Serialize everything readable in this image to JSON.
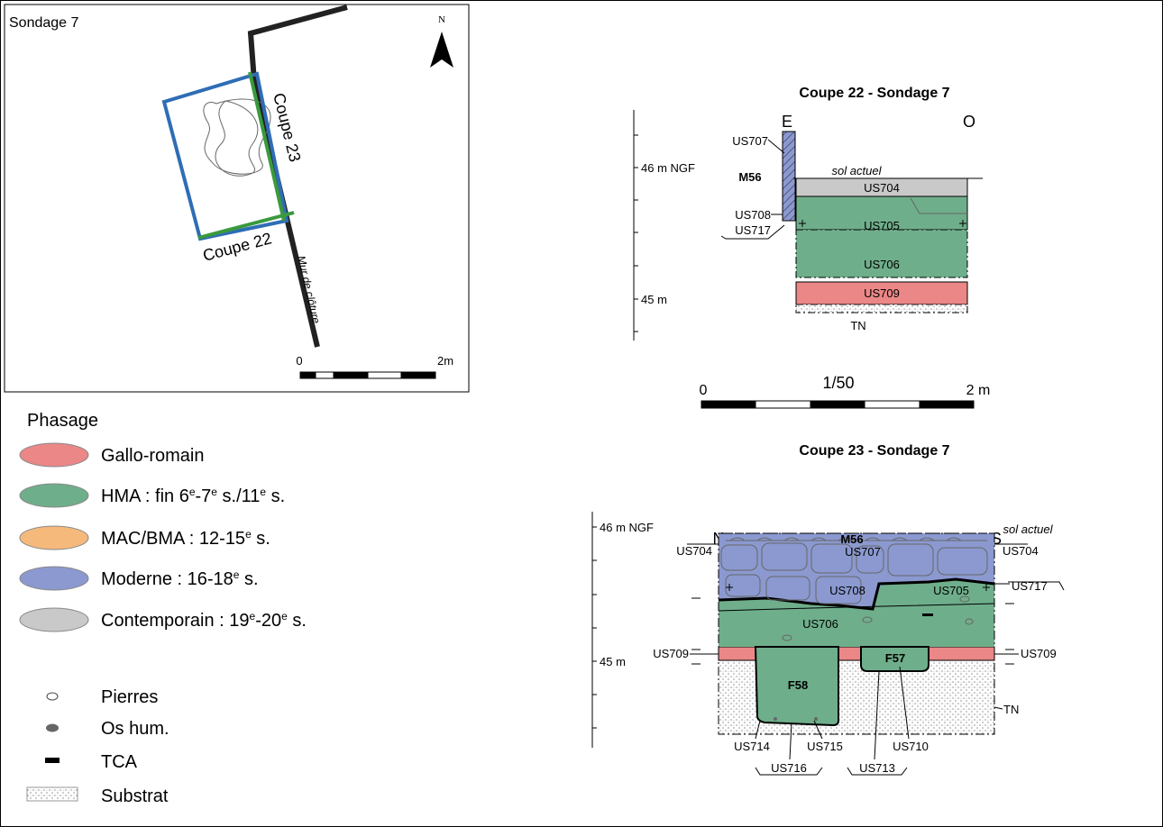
{
  "plan": {
    "title": "Sondage 7",
    "north": "N",
    "coupe_23": "Coupe 23",
    "coupe_22": "Coupe 22",
    "wall": "Mur de clôture",
    "scale_start": "0",
    "scale_end": "2m"
  },
  "legend": {
    "title": "Phasage",
    "phases": [
      {
        "label": [
          "Gallo-romain"
        ],
        "color": "#eb8787"
      },
      {
        "label": [
          "HMA : fin 6",
          "e",
          "-7",
          "e",
          " s./11",
          "e",
          " s."
        ],
        "color": "#6fae8b"
      },
      {
        "label": [
          "MAC/BMA : 12-15",
          "e",
          " s."
        ],
        "color": "#f6b97c"
      },
      {
        "label": [
          "Moderne : 16-18",
          "e",
          " s."
        ],
        "color": "#8b99d0"
      },
      {
        "label": [
          "Contemporain : 19",
          "e",
          "-20",
          "e",
          " s."
        ],
        "color": "#c9c9c9"
      }
    ],
    "symbols": [
      "Pierres",
      "Os hum.",
      "TCA",
      "Substrat"
    ]
  },
  "coupe_22": {
    "title": "Coupe 22 - Sondage 7",
    "left": "E",
    "right": "O",
    "elev_top": "46 m NGF",
    "elev_bottom": "45 m",
    "us707": "US707",
    "m56": "M56",
    "sol": "sol actuel",
    "us704": "US704",
    "us708": "US708",
    "us705": "US705",
    "us717": "US717",
    "us706": "US706",
    "us709": "US709",
    "tn": "TN"
  },
  "scale": {
    "start": "0",
    "ratio": "1/50",
    "end": "2 m"
  },
  "coupe_23": {
    "title": "Coupe 23 - Sondage 7",
    "left": "N",
    "right": "S",
    "m56": "M56",
    "us707": "US707",
    "elev_top": "46 m NGF",
    "elev_bottom": "45 m",
    "sol": "sol actuel",
    "us704_left": "US704",
    "us704_right": "US704",
    "us717": "US717",
    "us708": "US708",
    "us705": "US705",
    "us706": "US706",
    "us709_left": "US709",
    "us709_right": "US709",
    "f57": "F57",
    "f58": "F58",
    "tn": "TN",
    "us714": "US714",
    "us715": "US715",
    "us710": "US710",
    "us716": "US716",
    "us713": "US713"
  }
}
